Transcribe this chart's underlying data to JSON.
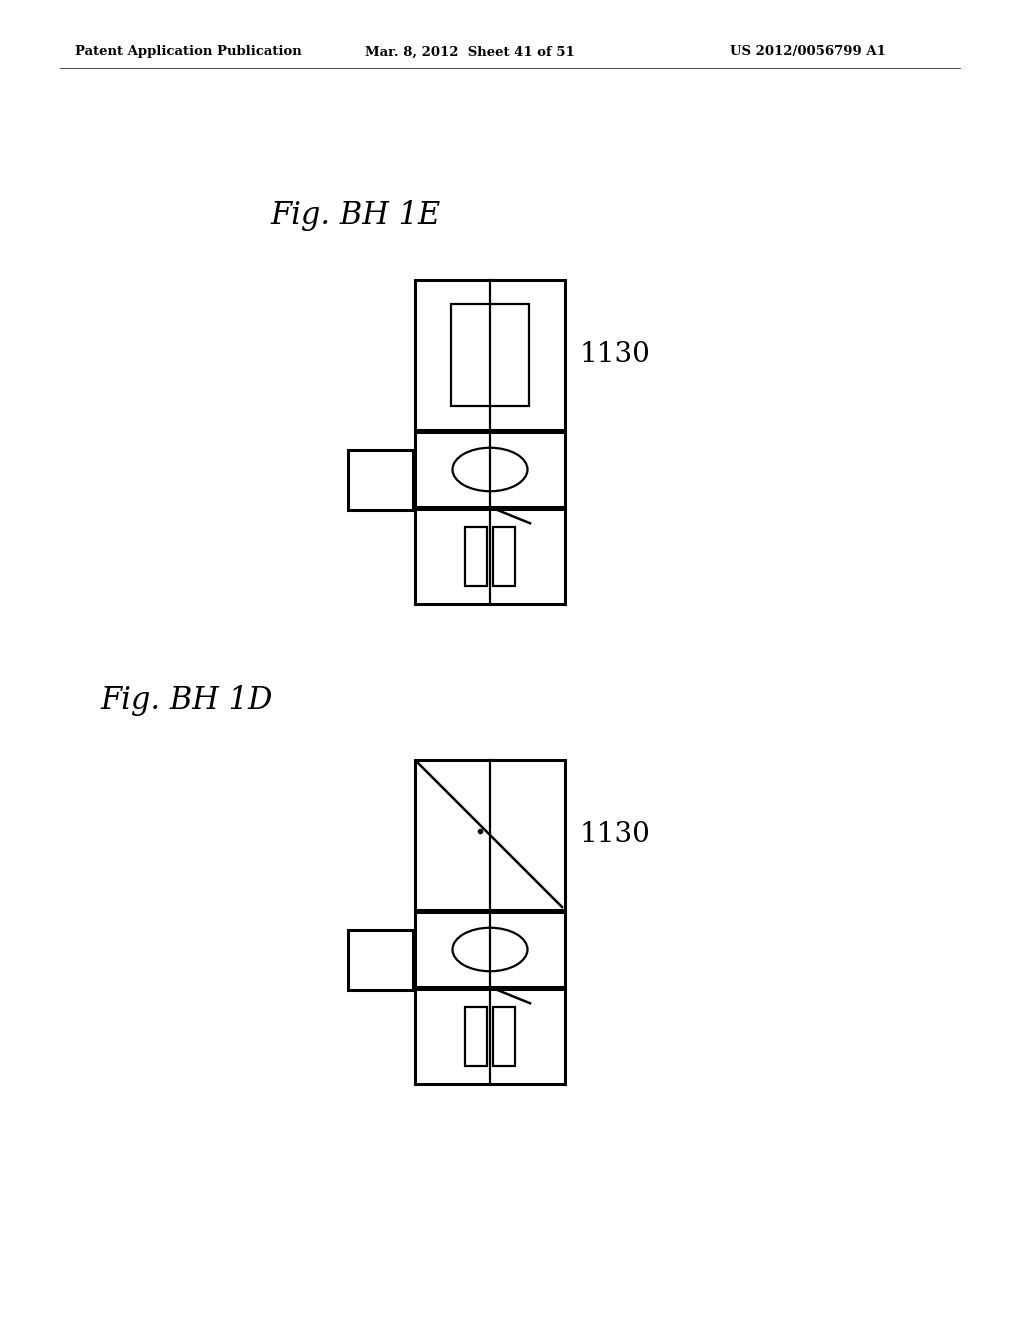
{
  "background_color": "#ffffff",
  "header_text": "Patent Application Publication",
  "header_date": "Mar. 8, 2012  Sheet 41 of 51",
  "header_patent": "US 2012/0056799 A1",
  "fig1_label": "Fig. BH 1E",
  "fig2_label": "Fig. BH 1D",
  "label_1130": "1130",
  "line_color": "#000000",
  "lw_outer": 2.2,
  "lw_inner": 1.6,
  "lw_line": 1.8
}
